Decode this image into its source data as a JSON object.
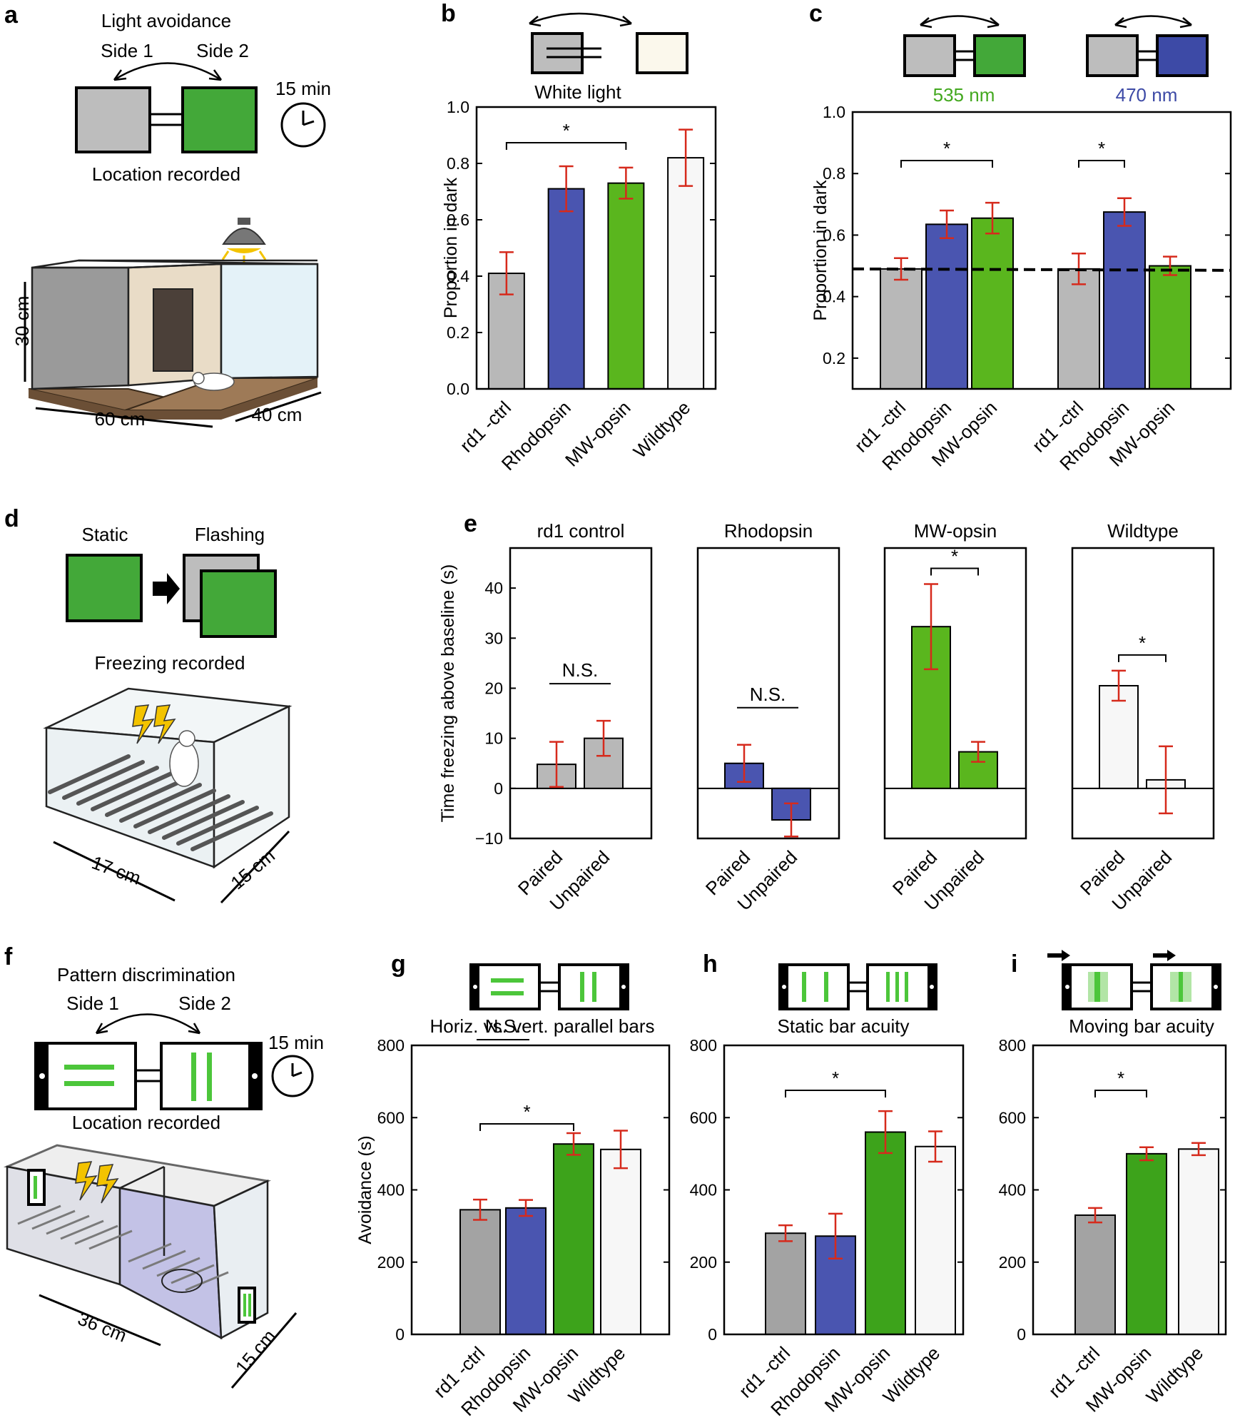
{
  "colors": {
    "gray": "#b8b8b8",
    "gray_dark": "#a3a3a3",
    "blue": "#4a55b0",
    "green": "#5ab61e",
    "green_dark": "#3da31b",
    "white_bar": "#f7f7f7",
    "cream": "#fbf8ec",
    "err": "#d62a1c",
    "nm535": "#43a81f",
    "nm470": "#3d4aa6"
  },
  "panel_a": {
    "letter": "a",
    "title": "Light avoidance",
    "side1": "Side 1",
    "side2": "Side 2",
    "time": "15 min",
    "recorded": "Location recorded",
    "dim_h": "30 cm",
    "dim_w": "60 cm",
    "dim_d": "40 cm"
  },
  "panel_d": {
    "letter": "d",
    "static": "Static",
    "flashing": "Flashing",
    "recorded": "Freezing recorded",
    "dim_w": "17 cm",
    "dim_d": "15 cm"
  },
  "panel_f": {
    "letter": "f",
    "title": "Pattern discrimination",
    "side1": "Side 1",
    "side2": "Side 2",
    "time": "15 min",
    "recorded": "Location recorded",
    "dim_w": "36 cm",
    "dim_d": "15 cm"
  },
  "chart_data": [
    {
      "id": "b",
      "letter": "b",
      "type": "bar",
      "title": "White light",
      "ylabel": "Proportion in dark",
      "ylim": [
        0,
        1.0
      ],
      "yticks": [
        "0.0",
        "0.2",
        "0.4",
        "0.6",
        "0.8",
        "1.0"
      ],
      "categories": [
        "rd1 -ctrl",
        "Rhodopsin",
        "MW-opsin",
        "Wildtype"
      ],
      "values": [
        0.41,
        0.71,
        0.73,
        0.82
      ],
      "errors": [
        0.075,
        0.08,
        0.055,
        0.1
      ],
      "bar_colors": [
        "gray",
        "blue",
        "green",
        "white_bar"
      ],
      "significance": [
        {
          "from": 0,
          "to": 2,
          "label": "*"
        }
      ]
    },
    {
      "id": "c",
      "letter": "c",
      "type": "bar",
      "wavelengths": [
        "535 nm",
        "470 nm"
      ],
      "ylabel": "Proportion in dark",
      "ylim": [
        0.1,
        1.0
      ],
      "yticks": [
        "0.2",
        "0.4",
        "0.6",
        "0.8",
        "1.0"
      ],
      "reference_line": 0.49,
      "groups": [
        {
          "name": "535 nm",
          "categories": [
            "rd1 -ctrl",
            "Rhodopsin",
            "MW-opsin"
          ],
          "values": [
            0.49,
            0.635,
            0.655
          ],
          "errors": [
            0.035,
            0.045,
            0.05
          ]
        },
        {
          "name": "470 nm",
          "categories": [
            "rd1 -ctrl",
            "Rhodopsin",
            "MW-opsin"
          ],
          "values": [
            0.49,
            0.675,
            0.5
          ],
          "errors": [
            0.05,
            0.045,
            0.03
          ]
        }
      ],
      "bar_colors": [
        "gray",
        "blue",
        "green"
      ],
      "significance": [
        {
          "group": 0,
          "from": 0,
          "to": 2,
          "label": "*"
        },
        {
          "group": 1,
          "from": 0,
          "to": 1,
          "label": "*"
        }
      ]
    },
    {
      "id": "e",
      "letter": "e",
      "type": "bar",
      "ylabel": "Time freezing above baseline (s)",
      "ylim": [
        -10,
        48
      ],
      "yticks": [
        "−10",
        "0",
        "10",
        "20",
        "30",
        "40"
      ],
      "categories": [
        "Paired",
        "Unpaired"
      ],
      "subplots": [
        {
          "title": "rd1 control",
          "values": [
            4.8,
            10.0
          ],
          "errors": [
            4.5,
            3.5
          ],
          "color": "gray",
          "significance": "N.S."
        },
        {
          "title": "Rhodopsin",
          "values": [
            5.0,
            -6.3
          ],
          "errors": [
            3.7,
            3.3
          ],
          "color": "blue",
          "significance": "N.S."
        },
        {
          "title": "MW-opsin",
          "values": [
            32.3,
            7.3
          ],
          "errors": [
            8.5,
            2.0
          ],
          "color": "green",
          "significance": "*"
        },
        {
          "title": "Wildtype",
          "values": [
            20.5,
            1.7
          ],
          "errors": [
            3.0,
            6.7
          ],
          "color": "white_bar",
          "significance": "*"
        }
      ]
    },
    {
      "id": "g",
      "letter": "g",
      "type": "bar",
      "title": "Horiz. vs. vert. parallel bars",
      "ylabel": "Avoidance (s)",
      "ylim": [
        0,
        800
      ],
      "yticks": [
        "0",
        "200",
        "400",
        "600",
        "800"
      ],
      "categories": [
        "rd1 -ctrl",
        "Rhodopsin",
        "MW-opsin",
        "Wildtype"
      ],
      "values": [
        345,
        350,
        527,
        512
      ],
      "errors": [
        28,
        22,
        30,
        52
      ],
      "bar_colors": [
        "gray_dark",
        "blue",
        "green_dark",
        "white_bar"
      ],
      "significance": [
        {
          "from": 0,
          "to": 1,
          "label": "N.S."
        },
        {
          "from": 0,
          "to": 2,
          "label": "*"
        }
      ]
    },
    {
      "id": "h",
      "letter": "h",
      "type": "bar",
      "title": "Static bar acuity",
      "ylim": [
        0,
        800
      ],
      "yticks": [
        "0",
        "200",
        "400",
        "600",
        "800"
      ],
      "categories": [
        "rd1 -ctrl",
        "Rhodopsin",
        "MW-opsin",
        "Wildtype"
      ],
      "values": [
        280,
        272,
        560,
        520
      ],
      "errors": [
        22,
        62,
        58,
        42
      ],
      "bar_colors": [
        "gray_dark",
        "blue",
        "green_dark",
        "white_bar"
      ],
      "significance": [
        {
          "from": 0,
          "to": 2,
          "label": "*"
        }
      ]
    },
    {
      "id": "i",
      "letter": "i",
      "type": "bar",
      "title": "Moving bar acuity",
      "ylim": [
        0,
        800
      ],
      "yticks": [
        "0",
        "200",
        "400",
        "600",
        "800"
      ],
      "categories": [
        "rd1 -ctrl",
        "MW-opsin",
        "Wildtype"
      ],
      "values": [
        330,
        500,
        513
      ],
      "errors": [
        20,
        18,
        17
      ],
      "bar_colors": [
        "gray_dark",
        "green_dark",
        "white_bar"
      ],
      "significance": [
        {
          "from": 0,
          "to": 1,
          "label": "*"
        }
      ]
    }
  ]
}
